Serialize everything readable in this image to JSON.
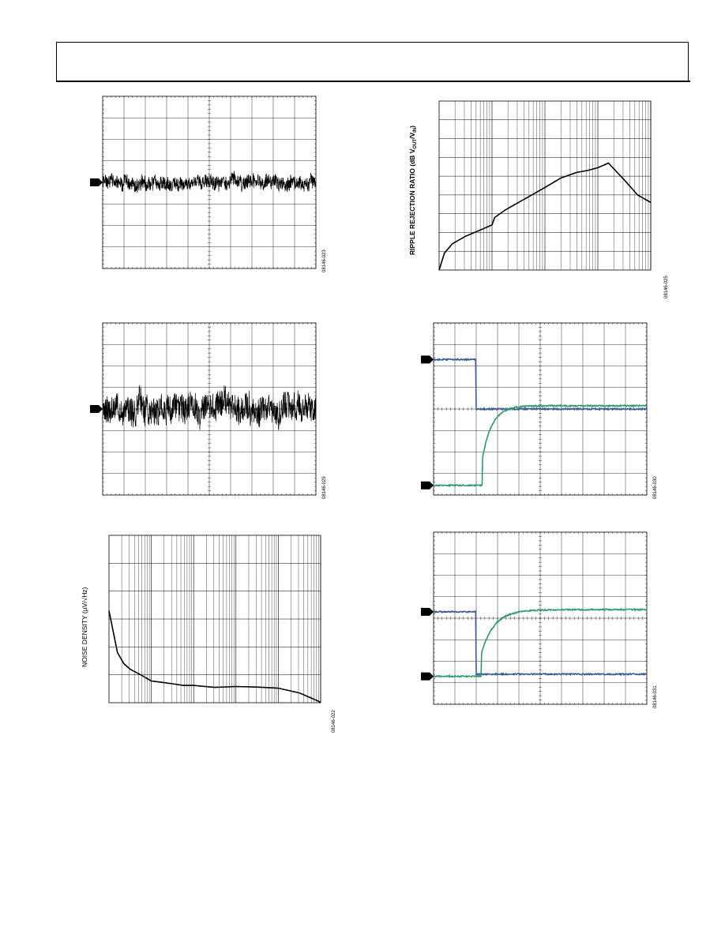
{
  "page": {
    "header_title": ""
  },
  "colors": {
    "trace_black": "#000000",
    "trace_blue": "#3a5a9a",
    "trace_green": "#2e9a6a",
    "grid": "#000000"
  },
  "chart_data": [
    {
      "id": "scope-noise-1",
      "type": "line",
      "title": "",
      "figure_code": "08146-023",
      "grid": true,
      "divisions": [
        10,
        8
      ],
      "markers": [
        {
          "label": "",
          "level_div": 4.0
        }
      ],
      "series": [
        {
          "color": "#000000",
          "kind": "noise",
          "center_div": 4.0,
          "amplitude_div": 0.45,
          "seed": 11
        }
      ]
    },
    {
      "id": "ripple-rejection",
      "type": "line",
      "title": "",
      "figure_code": "08146-025",
      "ylabel": "RIPPLE REJECTION RATIO (dB V",
      "ylabel_sub1": "OUT",
      "ylabel_mid": "/V",
      "ylabel_sub2": "IN",
      "ylabel_end": ")",
      "grid": true,
      "xscale": "log",
      "x_decades": 4,
      "y_divisions": 9,
      "ylim": [
        0,
        9
      ],
      "series": [
        {
          "color": "#000000",
          "x_decade": [
            0.0,
            0.1,
            0.25,
            0.5,
            0.75,
            1.0,
            1.05,
            1.25,
            1.5,
            1.75,
            2.0,
            2.3,
            2.6,
            2.8,
            3.0,
            3.2,
            3.5,
            3.75,
            4.0
          ],
          "y": [
            0.0,
            0.9,
            1.4,
            1.8,
            2.1,
            2.4,
            2.8,
            3.2,
            3.6,
            4.0,
            4.4,
            4.9,
            5.2,
            5.3,
            5.45,
            5.7,
            4.8,
            4.0,
            3.6
          ]
        }
      ]
    },
    {
      "id": "scope-noise-2",
      "type": "line",
      "title": "",
      "figure_code": "08146-029",
      "grid": true,
      "divisions": [
        10,
        8
      ],
      "markers": [
        {
          "label": "",
          "level_div": 4.0
        }
      ],
      "series": [
        {
          "color": "#000000",
          "kind": "noise",
          "center_div": 4.0,
          "amplitude_div": 0.9,
          "seed": 29
        }
      ]
    },
    {
      "id": "scope-step-1",
      "type": "line",
      "title": "",
      "figure_code": "08146-030",
      "grid": true,
      "divisions": [
        10,
        8
      ],
      "markers": [
        {
          "label": "",
          "level_div": 1.7
        },
        {
          "label": "",
          "level_div": 7.55
        }
      ],
      "series": [
        {
          "color": "#3a5a9a",
          "kind": "step",
          "base_div": 1.7,
          "high_div": 4.0,
          "step_x_div": 2.0,
          "rise": "sharp"
        },
        {
          "color": "#2e9a6a",
          "kind": "step",
          "base_div": 7.55,
          "high_div": 3.85,
          "step_x_div": 2.3,
          "rise": "exp",
          "tau_div": 0.45
        }
      ]
    },
    {
      "id": "noise-density",
      "type": "line",
      "title": "",
      "figure_code": "08146-022",
      "ylabel": "NOISE DENSITY (µV/√Hz)",
      "grid": true,
      "xscale": "log",
      "x_decades": 5,
      "y_divisions": 6,
      "ylim": [
        0,
        6
      ],
      "series": [
        {
          "color": "#000000",
          "x_decade": [
            0.0,
            0.2,
            0.35,
            0.5,
            0.75,
            1.0,
            1.3,
            1.5,
            1.75,
            2.0,
            2.5,
            3.0,
            3.5,
            4.0,
            4.5,
            5.0
          ],
          "y": [
            3.3,
            1.8,
            1.4,
            1.2,
            1.0,
            0.78,
            0.72,
            0.68,
            0.62,
            0.62,
            0.55,
            0.58,
            0.56,
            0.52,
            0.35,
            0.02
          ]
        }
      ]
    },
    {
      "id": "scope-step-2",
      "type": "line",
      "title": "",
      "figure_code": "08146-031",
      "grid": true,
      "divisions": [
        10,
        8
      ],
      "markers": [
        {
          "label": "",
          "level_div": 3.7
        },
        {
          "label": "",
          "level_div": 6.7
        }
      ],
      "series": [
        {
          "color": "#3a5a9a",
          "kind": "step",
          "base_div": 3.7,
          "high_div": 6.6,
          "step_x_div": 2.0,
          "rise": "sharp"
        },
        {
          "color": "#2e9a6a",
          "kind": "step",
          "base_div": 6.7,
          "high_div": 3.6,
          "step_x_div": 2.25,
          "rise": "exp",
          "tau_div": 0.6
        }
      ]
    }
  ]
}
